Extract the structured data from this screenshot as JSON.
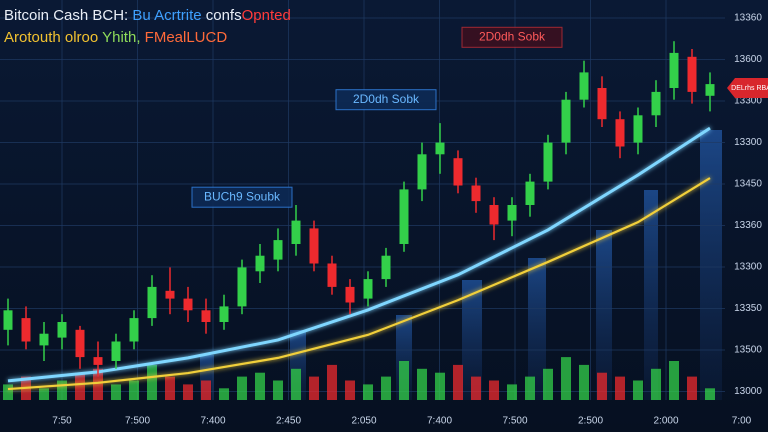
{
  "chart_data": {
    "type": "candlestick",
    "title_parts": [
      {
        "text": "Bitcoin Cash BCH: ",
        "color": "#e9eef7"
      },
      {
        "text": "Bu Acrtrite ",
        "color": "#3fa0ff"
      },
      {
        "text": "confs",
        "color": "#e9eef7"
      },
      {
        "text": "Opnted",
        "color": "#ff3b3b"
      }
    ],
    "subtitle_parts": [
      {
        "text": "Arotouth olroo ",
        "color": "#f2c230"
      },
      {
        "text": "Yhith, ",
        "color": "#8fdc5a"
      },
      {
        "text": "FMealLUCD",
        "color": "#ff6a3a"
      }
    ],
    "ylim": [
      0,
      100
    ],
    "y_labels": [
      "13360",
      "13600",
      "13300",
      "13300",
      "13450",
      "13360",
      "13300",
      "13350",
      "13500",
      "13000"
    ],
    "x_labels": [
      "7:50",
      "7:500",
      "7:400",
      "2:450",
      "2:050",
      "7:400",
      "7:500",
      "2:500",
      "2:000",
      "7:00"
    ],
    "up_color": "#33d04a",
    "down_color": "#ee2a2e",
    "open": [
      18,
      21,
      14,
      16,
      18,
      11,
      10,
      15,
      21,
      28,
      26,
      23,
      20,
      24,
      33,
      36,
      40,
      44,
      35,
      29,
      26,
      31,
      40,
      54,
      63,
      62,
      55,
      50,
      46,
      50,
      56,
      66,
      77,
      80,
      72,
      66,
      73,
      80,
      88,
      78
    ],
    "high": [
      26,
      24,
      20,
      22,
      19,
      15,
      17,
      23,
      32,
      34,
      29,
      26,
      27,
      36,
      40,
      44,
      50,
      46,
      37,
      31,
      33,
      39,
      56,
      66,
      71,
      64,
      57,
      52,
      52,
      58,
      68,
      79,
      87,
      83,
      74,
      75,
      82,
      92,
      90,
      84
    ],
    "low": [
      14,
      13,
      10,
      13,
      8,
      6,
      8,
      13,
      19,
      22,
      20,
      17,
      18,
      22,
      30,
      33,
      37,
      33,
      27,
      22,
      24,
      29,
      38,
      51,
      58,
      53,
      48,
      41,
      42,
      47,
      54,
      63,
      75,
      70,
      62,
      63,
      70,
      77,
      76,
      74
    ],
    "close": [
      23,
      15,
      17,
      20,
      11,
      9,
      15,
      21,
      29,
      26,
      23,
      20,
      24,
      34,
      37,
      41,
      46,
      35,
      29,
      25,
      31,
      37,
      54,
      63,
      66,
      55,
      51,
      45,
      50,
      56,
      66,
      77,
      84,
      72,
      65,
      73,
      79,
      89,
      79,
      81
    ],
    "volume": [
      4,
      6,
      3,
      5,
      7,
      8,
      4,
      5,
      9,
      6,
      4,
      5,
      3,
      6,
      7,
      5,
      8,
      6,
      9,
      5,
      4,
      6,
      10,
      8,
      7,
      9,
      6,
      5,
      4,
      6,
      8,
      11,
      9,
      7,
      6,
      5,
      8,
      10,
      6,
      3
    ],
    "lines": [
      {
        "x": [
          0,
          5,
          10,
          15,
          20,
          25,
          30,
          35,
          39
        ],
        "values": [
          4.9,
          7.2,
          10.8,
          15.4,
          23.1,
          32.1,
          43.6,
          57.7,
          69.7
        ],
        "color": "#7fd6ff"
      },
      {
        "x": [
          0,
          5,
          10,
          15,
          20,
          25,
          30,
          35,
          39
        ],
        "values": [
          2.8,
          4.4,
          6.9,
          10.8,
          16.7,
          25.6,
          35.4,
          45.6,
          56.9
        ],
        "color": "#f1cf3a"
      }
    ],
    "annotations": [
      {
        "text": "BUCh9 Soubk",
        "x": 13,
        "y": 52,
        "style": "blue"
      },
      {
        "text": "2D0dh Sobk",
        "x": 21,
        "y": 77,
        "style": "blue"
      },
      {
        "text": "2D0dh Sobk",
        "x": 28,
        "y": 93,
        "style": "red"
      }
    ],
    "price_tag": {
      "text": "DELrhs RBA",
      "y": 80
    }
  }
}
